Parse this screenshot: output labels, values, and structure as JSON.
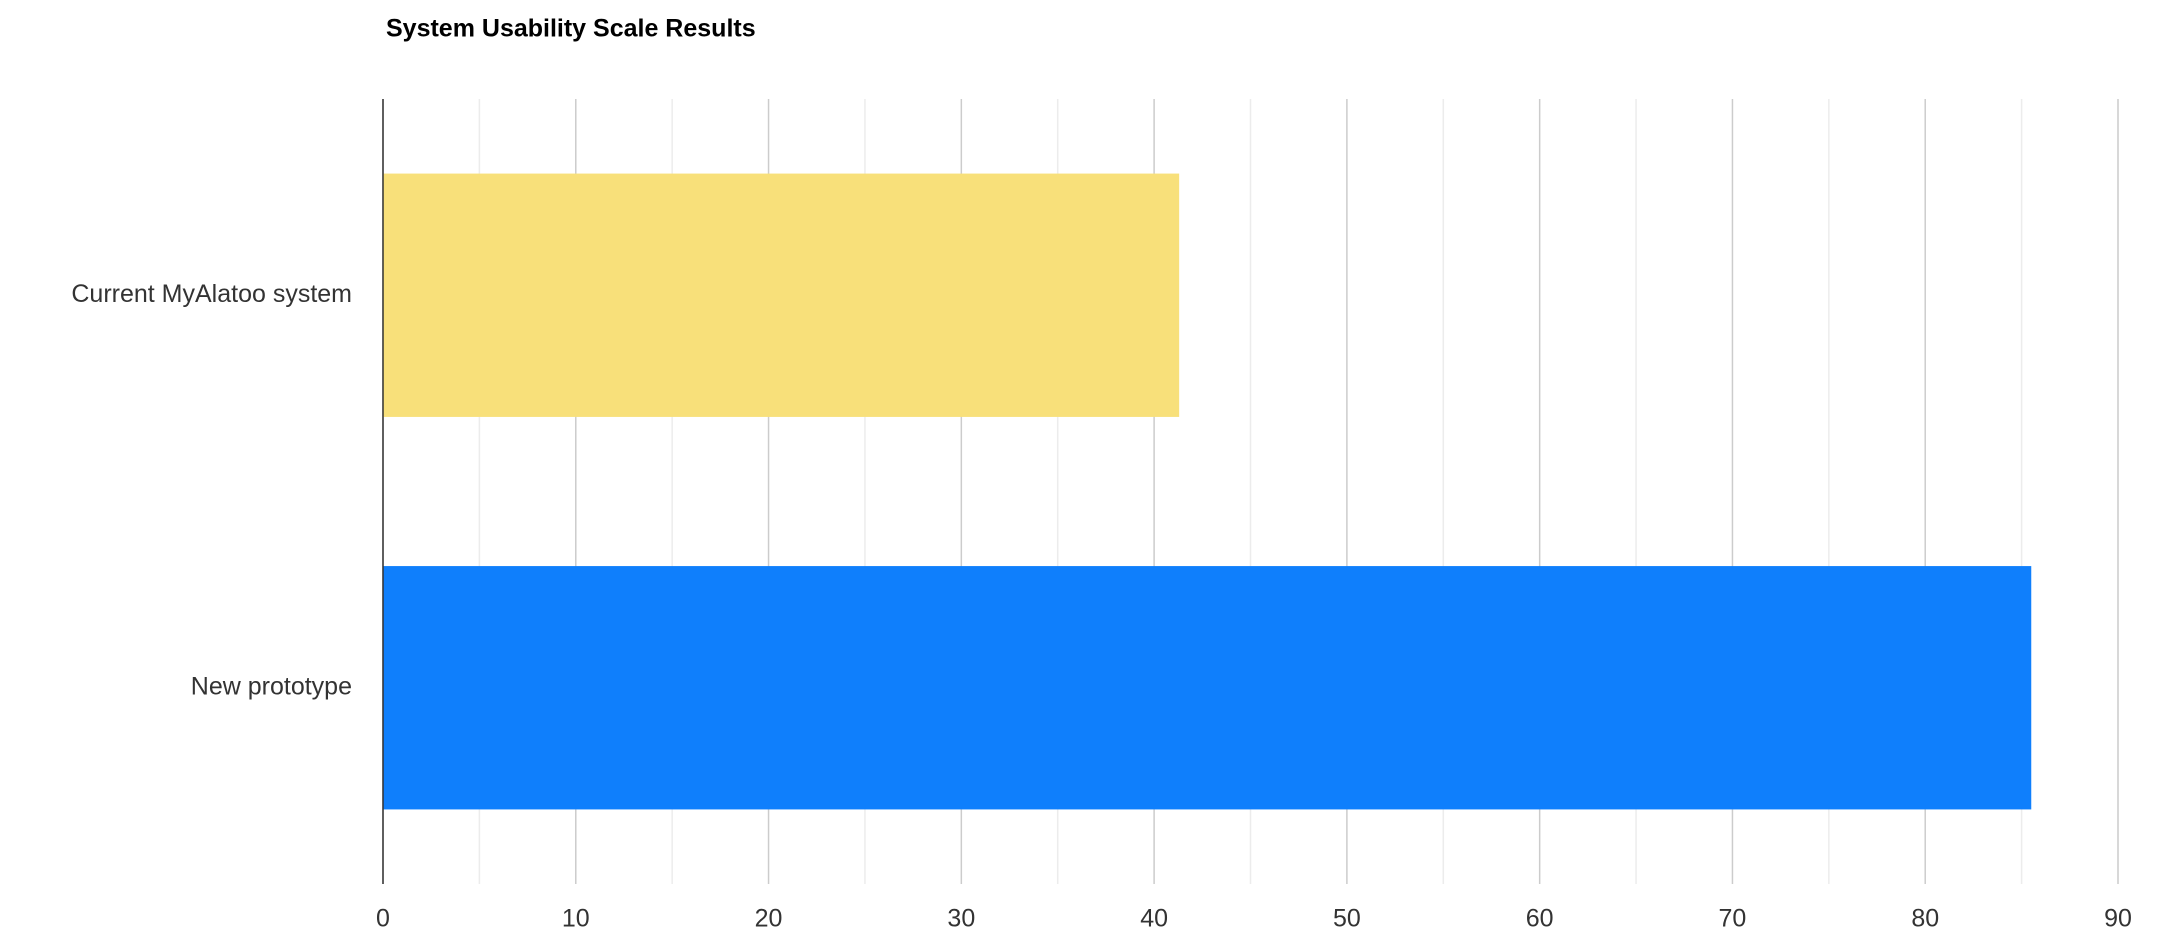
{
  "chart_data": {
    "type": "hbar",
    "title": "System Usability Scale Results",
    "categories": [
      "Current MyAlatoo system",
      "New prototype"
    ],
    "values": [
      41.3,
      85.5
    ],
    "colors": [
      "#f8e07a",
      "#0f7ffc"
    ],
    "xlim": [
      0,
      90
    ],
    "xticks": [
      0,
      10,
      20,
      30,
      40,
      50,
      60,
      70,
      80,
      90
    ],
    "grid": true,
    "minor_grid": true
  }
}
